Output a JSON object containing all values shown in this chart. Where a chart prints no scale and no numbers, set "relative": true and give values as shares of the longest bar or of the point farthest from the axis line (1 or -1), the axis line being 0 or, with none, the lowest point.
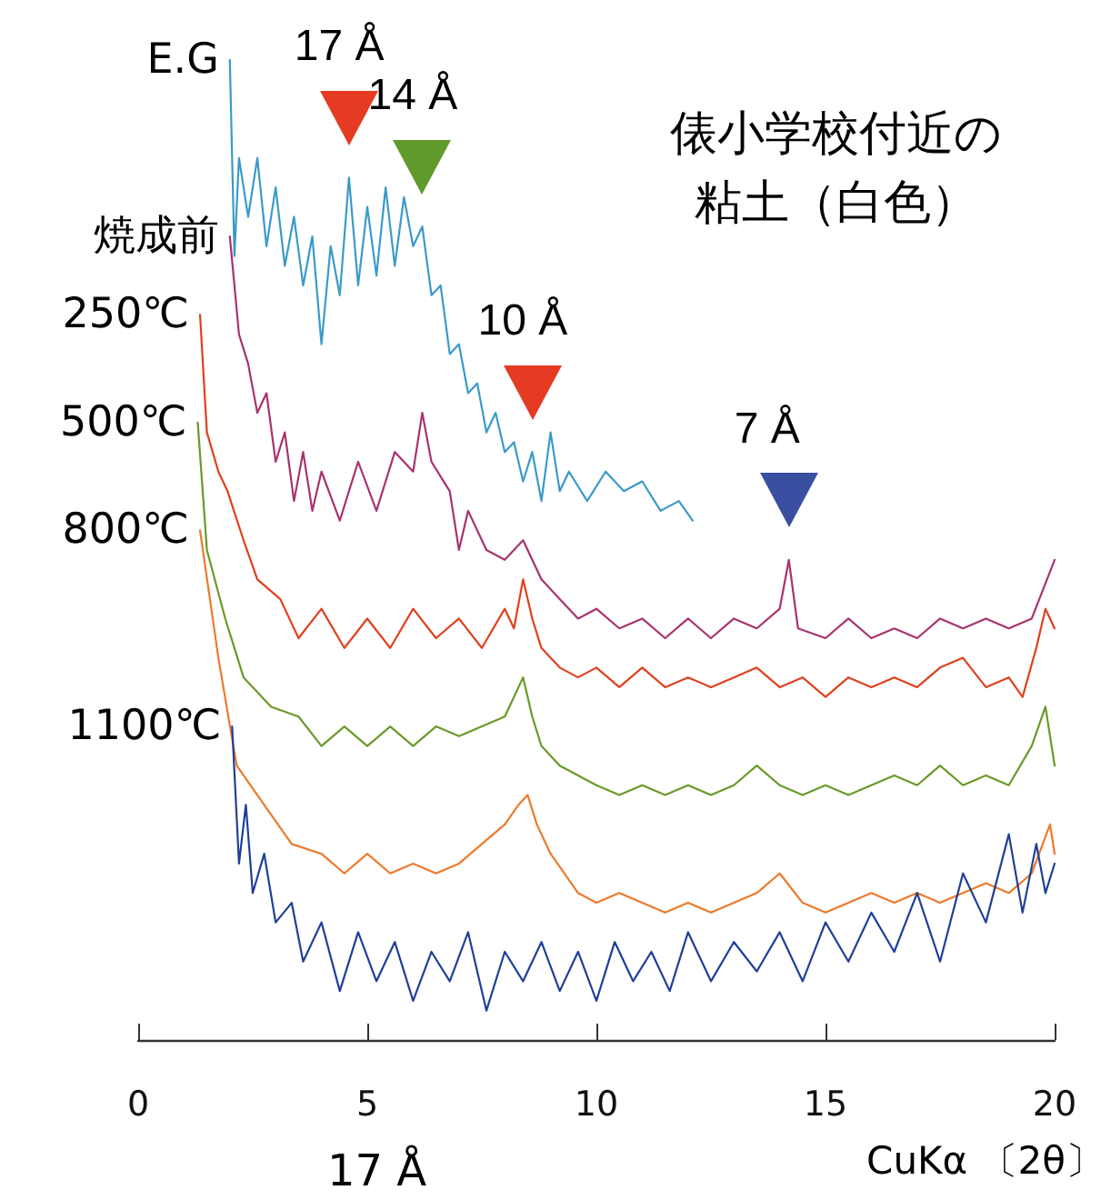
{
  "chart_data": {
    "type": "line",
    "relative": true,
    "title": "俵小学校付近の粘土（白色）",
    "xlabel": "CuKα 〔2θ〕",
    "xlim": [
      0,
      20
    ],
    "xticks": [
      0,
      5,
      10,
      15,
      20
    ],
    "grid": false,
    "legend": false,
    "marker": "none",
    "line_style": "solid",
    "annotations": [
      {
        "text": "17 Å",
        "x": 4.6,
        "y": 0.88
      },
      {
        "text": "14 Å",
        "x": 6.2,
        "y": 0.83
      },
      {
        "text": "10 Å",
        "x": 8.6,
        "y": 0.6
      },
      {
        "text": "7 Å",
        "x": 14.2,
        "y": 0.49
      },
      "17 Å"
    ],
    "series": [
      {
        "name": "E.G",
        "color": "#3a9ac9",
        "x": [
          2.0,
          2.1,
          2.2,
          2.4,
          2.6,
          2.8,
          3.0,
          3.2,
          3.4,
          3.6,
          3.8,
          4.0,
          4.2,
          4.4,
          4.6,
          4.8,
          5.0,
          5.2,
          5.4,
          5.6,
          5.8,
          6.0,
          6.2,
          6.4,
          6.6,
          6.8,
          7.0,
          7.2,
          7.4,
          7.6,
          7.8,
          8.0,
          8.2,
          8.4,
          8.6,
          8.8,
          9.0,
          9.2,
          9.4,
          9.8,
          10.2,
          10.6,
          11.0,
          11.4,
          11.8,
          12.1
        ],
        "values": [
          1.0,
          0.8,
          0.9,
          0.84,
          0.9,
          0.81,
          0.87,
          0.79,
          0.84,
          0.77,
          0.82,
          0.71,
          0.81,
          0.76,
          0.88,
          0.77,
          0.85,
          0.78,
          0.87,
          0.79,
          0.86,
          0.81,
          0.83,
          0.76,
          0.77,
          0.7,
          0.71,
          0.66,
          0.67,
          0.62,
          0.64,
          0.6,
          0.61,
          0.57,
          0.6,
          0.55,
          0.62,
          0.56,
          0.58,
          0.55,
          0.58,
          0.56,
          0.57,
          0.54,
          0.55,
          0.53
        ]
      },
      {
        "name": "焼成前",
        "color": "#a8336e",
        "x": [
          2.0,
          2.2,
          2.4,
          2.6,
          2.8,
          3.0,
          3.2,
          3.4,
          3.6,
          3.8,
          4.0,
          4.4,
          4.8,
          5.2,
          5.6,
          6.0,
          6.2,
          6.4,
          6.8,
          7.0,
          7.2,
          7.6,
          8.0,
          8.4,
          8.8,
          9.2,
          9.6,
          10.0,
          10.5,
          11,
          11.5,
          12,
          12.5,
          13,
          13.5,
          14.0,
          14.2,
          14.4,
          15,
          15.5,
          16,
          16.5,
          17,
          17.5,
          18,
          18.5,
          19,
          19.5,
          20
        ],
        "values": [
          0.82,
          0.72,
          0.69,
          0.64,
          0.66,
          0.59,
          0.62,
          0.55,
          0.6,
          0.54,
          0.58,
          0.53,
          0.59,
          0.54,
          0.6,
          0.58,
          0.64,
          0.59,
          0.56,
          0.5,
          0.54,
          0.5,
          0.49,
          0.51,
          0.47,
          0.45,
          0.43,
          0.44,
          0.42,
          0.43,
          0.41,
          0.43,
          0.41,
          0.43,
          0.42,
          0.44,
          0.49,
          0.42,
          0.41,
          0.43,
          0.41,
          0.42,
          0.41,
          0.43,
          0.42,
          0.43,
          0.42,
          0.43,
          0.49
        ]
      },
      {
        "name": "250℃",
        "color": "#e0401e",
        "x": [
          1.35,
          1.5,
          1.75,
          1.95,
          2.3,
          2.6,
          3.1,
          3.5,
          4.0,
          4.5,
          5.0,
          5.5,
          6.0,
          6.5,
          7.0,
          7.5,
          8.0,
          8.2,
          8.4,
          8.6,
          8.8,
          9.2,
          9.6,
          10,
          10.5,
          11,
          11.5,
          12,
          12.5,
          13,
          13.5,
          14,
          14.5,
          15,
          15.5,
          16,
          16.5,
          17,
          17.5,
          18,
          18.5,
          19,
          19.3,
          19.6,
          19.8,
          20
        ],
        "values": [
          0.74,
          0.62,
          0.58,
          0.56,
          0.51,
          0.47,
          0.45,
          0.41,
          0.44,
          0.4,
          0.43,
          0.4,
          0.44,
          0.41,
          0.43,
          0.4,
          0.44,
          0.42,
          0.47,
          0.43,
          0.4,
          0.38,
          0.37,
          0.38,
          0.36,
          0.38,
          0.36,
          0.37,
          0.36,
          0.37,
          0.38,
          0.36,
          0.37,
          0.35,
          0.37,
          0.36,
          0.37,
          0.36,
          0.38,
          0.39,
          0.36,
          0.37,
          0.35,
          0.4,
          0.44,
          0.42
        ]
      },
      {
        "name": "500℃",
        "color": "#6a9a2a",
        "x": [
          1.3,
          1.5,
          1.9,
          2.3,
          2.9,
          3.5,
          4.0,
          4.5,
          5.0,
          5.5,
          6.0,
          6.5,
          7.0,
          7.5,
          8.0,
          8.2,
          8.4,
          8.6,
          8.8,
          9.2,
          9.6,
          10,
          10.5,
          11,
          11.5,
          12,
          12.5,
          13,
          13.5,
          14,
          14.5,
          15,
          15.5,
          16,
          16.5,
          17,
          17.5,
          18,
          18.5,
          19,
          19.5,
          19.8,
          20
        ],
        "values": [
          0.63,
          0.5,
          0.43,
          0.37,
          0.34,
          0.33,
          0.3,
          0.32,
          0.3,
          0.32,
          0.3,
          0.32,
          0.31,
          0.32,
          0.33,
          0.35,
          0.37,
          0.33,
          0.3,
          0.28,
          0.27,
          0.26,
          0.25,
          0.26,
          0.25,
          0.26,
          0.25,
          0.26,
          0.28,
          0.26,
          0.25,
          0.26,
          0.25,
          0.26,
          0.27,
          0.26,
          0.28,
          0.26,
          0.27,
          0.26,
          0.3,
          0.34,
          0.28
        ]
      },
      {
        "name": "800℃",
        "color": "#ec7a2a",
        "x": [
          1.35,
          1.75,
          2.15,
          2.75,
          3.35,
          4.0,
          4.5,
          5.0,
          5.5,
          6.0,
          6.5,
          7.0,
          7.5,
          8.0,
          8.3,
          8.5,
          8.7,
          9.0,
          9.3,
          9.6,
          10,
          10.5,
          11,
          11.5,
          12,
          12.5,
          13,
          13.5,
          14,
          14.5,
          15,
          15.5,
          16,
          16.5,
          17,
          17.5,
          18,
          18.5,
          19,
          19.5,
          19.9,
          20
        ],
        "values": [
          0.52,
          0.39,
          0.28,
          0.24,
          0.2,
          0.19,
          0.17,
          0.19,
          0.17,
          0.18,
          0.17,
          0.18,
          0.2,
          0.22,
          0.24,
          0.25,
          0.22,
          0.19,
          0.17,
          0.15,
          0.14,
          0.15,
          0.14,
          0.13,
          0.14,
          0.13,
          0.14,
          0.15,
          0.17,
          0.14,
          0.13,
          0.14,
          0.15,
          0.14,
          0.15,
          0.14,
          0.15,
          0.16,
          0.15,
          0.17,
          0.22,
          0.19
        ]
      },
      {
        "name": "1100℃",
        "color": "#1f3f99",
        "x": [
          2.05,
          2.2,
          2.35,
          2.5,
          2.75,
          3.0,
          3.35,
          3.6,
          4.0,
          4.4,
          4.8,
          5.2,
          5.6,
          6.0,
          6.4,
          6.8,
          7.2,
          7.6,
          8.0,
          8.4,
          8.8,
          9.2,
          9.6,
          10,
          10.4,
          10.8,
          11.2,
          11.6,
          12,
          12.5,
          13,
          13.5,
          14,
          14.5,
          15,
          15.5,
          16,
          16.5,
          17,
          17.5,
          18,
          18.5,
          19,
          19.3,
          19.6,
          19.8,
          20
        ],
        "values": [
          0.32,
          0.18,
          0.24,
          0.15,
          0.19,
          0.12,
          0.14,
          0.08,
          0.12,
          0.05,
          0.11,
          0.06,
          0.1,
          0.04,
          0.09,
          0.06,
          0.11,
          0.03,
          0.09,
          0.06,
          0.1,
          0.05,
          0.09,
          0.04,
          0.1,
          0.06,
          0.09,
          0.05,
          0.11,
          0.06,
          0.1,
          0.07,
          0.11,
          0.06,
          0.12,
          0.08,
          0.13,
          0.09,
          0.15,
          0.08,
          0.17,
          0.12,
          0.21,
          0.13,
          0.2,
          0.15,
          0.18
        ]
      }
    ]
  }
}
